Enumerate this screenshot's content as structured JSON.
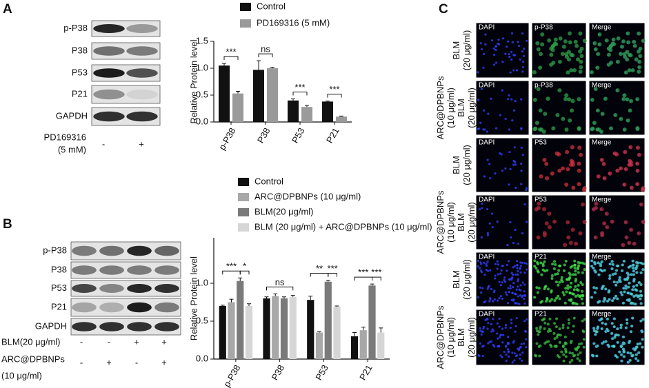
{
  "panels": {
    "a": "A",
    "b": "B",
    "c": "C"
  },
  "blot_a": {
    "rows": [
      "p-P38",
      "P38",
      "P53",
      "P21",
      "GAPDH"
    ],
    "treatment": [
      "PD169316",
      "(5 mM)"
    ],
    "signs": [
      "-",
      "+"
    ]
  },
  "blot_b": {
    "rows": [
      "p-P38",
      "P38",
      "P53",
      "P21",
      "GAPDH"
    ],
    "conditions": [
      {
        "label": [
          "BLM(20 μg/ml)"
        ],
        "signs": [
          "-",
          "-",
          "+",
          "+"
        ]
      },
      {
        "label": [
          "ARC@DPBNPs",
          "(10 μg/ml)"
        ],
        "signs": [
          "-",
          "+",
          "-",
          "+"
        ]
      }
    ]
  },
  "microscopy": {
    "rows": [
      {
        "label": [
          "BLM",
          "(20 μg/ml)"
        ],
        "channels": [
          "DAPI",
          "p-P38",
          "Merge"
        ]
      },
      {
        "label": [
          "ARC@DPBNPs",
          "(10 μg/ml)",
          "BLM",
          "(20 μg/ml)"
        ],
        "channels": [
          "DAPI",
          "p-P38",
          "Merge"
        ]
      },
      {
        "label": [
          "BLM",
          "(20 μg/ml)"
        ],
        "channels": [
          "DAPI",
          "P53",
          "Merge"
        ]
      },
      {
        "label": [
          "ARC@DPBNPs",
          "(10 μg/ml)",
          "BLM",
          "(20 μg/ml)"
        ],
        "channels": [
          "DAPI",
          "P53",
          "Merge"
        ]
      },
      {
        "label": [
          "BLM",
          "(20 μg/ml)"
        ],
        "channels": [
          "DAPI",
          "P21",
          "Merge"
        ]
      },
      {
        "label": [
          "ARC@DPBNPs",
          "(10 μg/ml)",
          "BLM",
          "(20 μg/ml)"
        ],
        "channels": [
          "DAPI",
          "P21",
          "Merge"
        ]
      }
    ]
  },
  "chart_data": [
    {
      "type": "bar",
      "y_label": "Relative Protein level",
      "categories": [
        "p-P38",
        "P38",
        "P53",
        "P21"
      ],
      "series": [
        {
          "name": "Control",
          "color": "#111111",
          "values": [
            1.05,
            0.97,
            0.4,
            0.38
          ],
          "errors": [
            0.04,
            0.17,
            0.03,
            0.01
          ]
        },
        {
          "name": "PD169316 (5 mM)",
          "color": "#9a9a9a",
          "values": [
            0.53,
            1.0,
            0.28,
            0.1
          ],
          "errors": [
            0.04,
            0.02,
            0.03,
            0.01
          ]
        }
      ],
      "ylim": [
        0,
        1.5
      ],
      "yticks": [
        {
          "value": 0,
          "label": "0.0"
        },
        0.5,
        {
          "value": 1,
          "label": "1.0"
        },
        1.5
      ],
      "brackets": [
        {
          "label": "***",
          "category": 0,
          "series": [
            0,
            1
          ]
        },
        {
          "label": "ns",
          "category": 1,
          "series": [
            0,
            1
          ]
        },
        {
          "label": "***",
          "category": 2,
          "series": [
            0,
            1
          ]
        },
        {
          "label": "***",
          "category": 3,
          "series": [
            0,
            1
          ]
        }
      ]
    },
    {
      "type": "bar",
      "y_label": "Relative Protein level",
      "categories": [
        "p-P38",
        "P38",
        "P53",
        "P21"
      ],
      "series": [
        {
          "name": "Control",
          "color": "#111111",
          "values": [
            0.7,
            0.8,
            0.78,
            0.3
          ],
          "errors": [
            0.01,
            0.02,
            0.05,
            0.05
          ]
        },
        {
          "name": "ARC@DPBNPs (10 μg/ml)",
          "color": "#a8a8a8",
          "values": [
            0.75,
            0.83,
            0.35,
            0.38
          ],
          "errors": [
            0.04,
            0.03,
            0.01,
            0.04
          ]
        },
        {
          "name": "BLM(20 μg/ml)",
          "color": "#7a7a7a",
          "values": [
            1.03,
            0.8,
            1.02,
            0.97
          ],
          "errors": [
            0.04,
            0.02,
            0.02,
            0.02
          ]
        },
        {
          "name": "BLM (20 μg/ml) + ARC@DPBNPs (10 μg/ml)",
          "color": "#d6d6d6",
          "values": [
            0.7,
            0.82,
            0.69,
            0.35
          ],
          "errors": [
            0.03,
            0.02,
            0.01,
            0.06
          ]
        }
      ],
      "ylim": [
        0,
        1.6
      ],
      "yticks": [
        {
          "value": 0,
          "label": "0.0"
        },
        0.5,
        {
          "value": 1,
          "label": "1.0"
        }
      ],
      "brackets": [
        {
          "label": "***",
          "category": 0,
          "series": [
            0,
            2
          ]
        },
        {
          "label": "*",
          "category": 0,
          "series": [
            2,
            3
          ]
        },
        {
          "label": "ns",
          "category": 1,
          "series": [
            0,
            3
          ]
        },
        {
          "label": "**",
          "category": 2,
          "series": [
            0,
            2
          ]
        },
        {
          "label": "***",
          "category": 2,
          "series": [
            2,
            3
          ]
        },
        {
          "label": "***",
          "category": 3,
          "series": [
            0,
            2
          ]
        },
        {
          "label": "***",
          "category": 3,
          "series": [
            2,
            3
          ]
        }
      ]
    }
  ]
}
